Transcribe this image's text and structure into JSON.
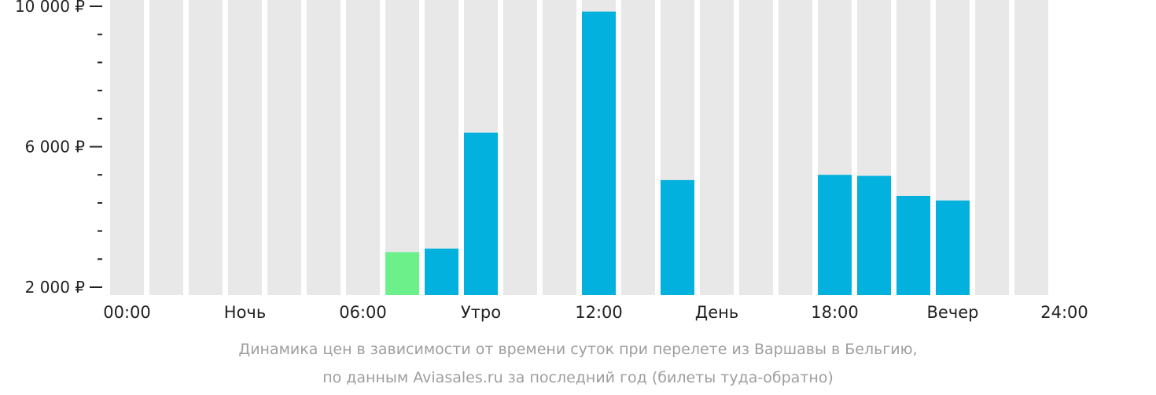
{
  "chart_data": {
    "type": "bar",
    "ylim": [
      2000,
      10000
    ],
    "y_ticks": [
      {
        "value": 2000,
        "label": "2 000 ₽"
      },
      {
        "value": 6000,
        "label": "6 000 ₽"
      },
      {
        "value": 10000,
        "label": "10 000 ₽"
      }
    ],
    "y_minor_step": 800,
    "x_labels": [
      "00:00",
      "Ночь",
      "06:00",
      "Утро",
      "12:00",
      "День",
      "18:00",
      "Вечер",
      "24:00"
    ],
    "slots": 24,
    "values": [
      null,
      null,
      null,
      null,
      null,
      null,
      null,
      3000,
      3100,
      6400,
      null,
      null,
      9850,
      null,
      5050,
      null,
      null,
      null,
      5200,
      5170,
      4600,
      4470,
      null,
      null
    ],
    "highlight_index": 7,
    "colors": {
      "background_bar": "#e8e8e8",
      "bar": "#02b1dd",
      "highlight": "#6cf08a",
      "axis": "#222222"
    }
  },
  "caption": {
    "line1": "Динамика цен в зависимости от времени суток при перелете из Варшавы в Бельгию,",
    "line2": "по данным Aviasales.ru за последний год (билеты туда-обратно)"
  }
}
